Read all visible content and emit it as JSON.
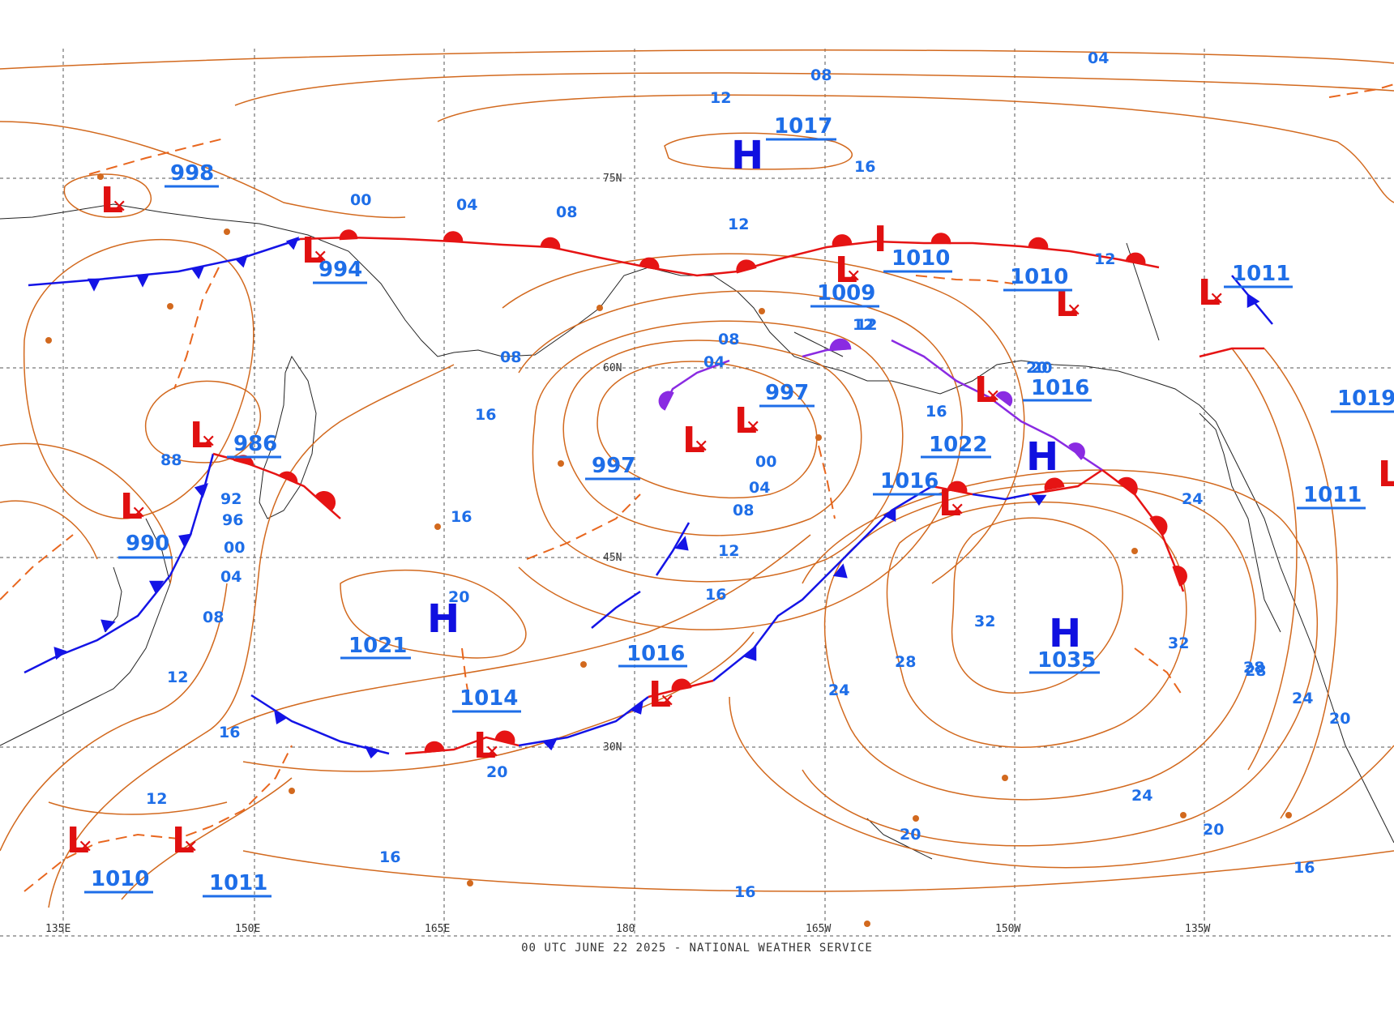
{
  "footer": "00 UTC JUNE 22 2025 - NATIONAL WEATHER SERVICE",
  "colors": {
    "isobar": "#d2691e",
    "high": "#1010e0",
    "low": "#e01010",
    "pressure_value": "#1e6ee8",
    "cold_front": "#1414e6",
    "warm_front": "#e61414",
    "occluded_front": "#8a2be2",
    "grid": "#444444"
  },
  "grid_labels": {
    "lat": [
      "75N",
      "60N",
      "45N",
      "30N"
    ],
    "lon": [
      "135E",
      "150E",
      "165E",
      "180",
      "165W",
      "150W",
      "135W"
    ]
  },
  "highs": [
    {
      "label": "H",
      "value": "1017"
    },
    {
      "label": "H",
      "value": "1021"
    },
    {
      "label": "H",
      "value": "1035"
    },
    {
      "label": "H",
      "value": "1022"
    }
  ],
  "lows": [
    {
      "label": "L",
      "value": "998"
    },
    {
      "label": "L",
      "value": "994"
    },
    {
      "label": "L",
      "value": "986"
    },
    {
      "label": "L",
      "value": "990"
    },
    {
      "label": "L",
      "value": "1009"
    },
    {
      "label": "L",
      "value": "1010"
    },
    {
      "label": "L",
      "value": "1010"
    },
    {
      "label": "L",
      "value": "1011"
    },
    {
      "label": "L",
      "value": "997"
    },
    {
      "label": "L",
      "value": "997"
    },
    {
      "label": "L",
      "value": "1016"
    },
    {
      "label": "L",
      "value": "1016"
    },
    {
      "label": "L",
      "value": "1016"
    },
    {
      "label": "L",
      "value": "1014"
    },
    {
      "label": "L",
      "value": "1010"
    },
    {
      "label": "L",
      "value": "1011"
    },
    {
      "label": "L",
      "value": "1011"
    },
    {
      "label": "L",
      "value": "1019"
    }
  ],
  "isobar_labels": [
    "04",
    "08",
    "12",
    "16",
    "00",
    "04",
    "08",
    "12",
    "08",
    "04",
    "00",
    "04",
    "08",
    "12",
    "16",
    "20",
    "24",
    "28",
    "32",
    "32",
    "28",
    "24",
    "20",
    "16",
    "12",
    "08",
    "16",
    "20",
    "24",
    "28",
    "24",
    "20",
    "16",
    "16",
    "20",
    "24",
    "12",
    "16",
    "20",
    "88",
    "92",
    "96",
    "00",
    "04",
    "08",
    "12",
    "16",
    "12",
    "16",
    "20",
    "16",
    "12"
  ]
}
